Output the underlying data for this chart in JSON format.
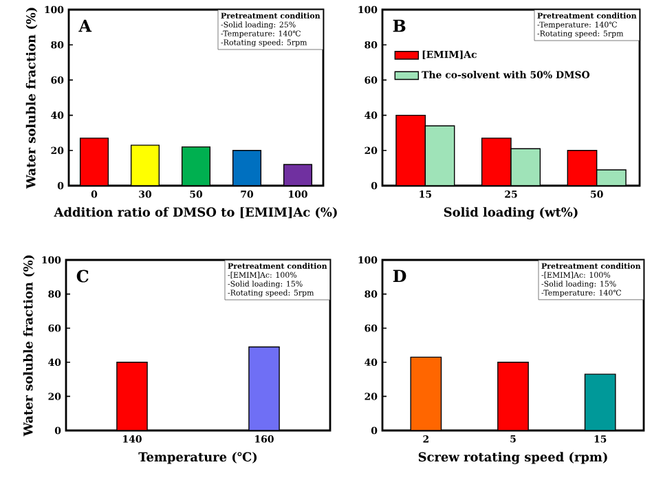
{
  "chart_data": [
    {
      "type": "bar",
      "title": "A",
      "xlabel": "Addition ratio of DMSO to [EMIM]Ac (%)",
      "ylabel": "Water soluble fraction (%)",
      "annotations": [
        "Pretreatment condition",
        "-Solid loading: 25%",
        "-Temperature: 140℃",
        "-Rotating speed: 5rpm"
      ],
      "categories": [
        "0",
        "30",
        "50",
        "70",
        "100"
      ],
      "values": [
        27,
        23,
        22,
        20,
        12
      ],
      "colors": [
        "#ff0000",
        "#ffff00",
        "#00b050",
        "#0070c0",
        "#7030a0"
      ],
      "ylim": [
        0,
        100
      ],
      "yticks": [
        0,
        20,
        40,
        60,
        80,
        100
      ]
    },
    {
      "type": "bar",
      "title": "B",
      "xlabel": "Solid loading (wt%)",
      "annotations": [
        "Pretreatment condition",
        "-Temperature: 140℃",
        "-Rotating speed: 5rpm"
      ],
      "categories": [
        "15",
        "25",
        "50"
      ],
      "series": [
        {
          "name": "[EMIM]Ac",
          "color": "#ff0000",
          "values": [
            40,
            27,
            20
          ]
        },
        {
          "name": "The co-solvent with 50% DMSO",
          "color": "#9fe3b8",
          "values": [
            34,
            21,
            9
          ]
        }
      ],
      "legend": "top left",
      "ylim": [
        0,
        100
      ],
      "yticks": [
        0,
        20,
        40,
        60,
        80,
        100
      ]
    },
    {
      "type": "bar",
      "title": "C",
      "xlabel": "Temperature (℃)",
      "ylabel": "Water soluble fraction (%)",
      "annotations": [
        "Pretreatment condition",
        "-[EMIM]Ac: 100%",
        "-Solid loading: 15%",
        "-Rotating speed: 5rpm"
      ],
      "categories": [
        "140",
        "160"
      ],
      "values": [
        40,
        49
      ],
      "colors": [
        "#ff0000",
        "#6f6ff5"
      ],
      "ylim": [
        0,
        100
      ],
      "yticks": [
        0,
        20,
        40,
        60,
        80,
        100
      ]
    },
    {
      "type": "bar",
      "title": "D",
      "xlabel": "Screw rotating speed (rpm)",
      "annotations": [
        "Pretreatment condition",
        "-[EMIM]Ac: 100%",
        "-Solid loading: 15%",
        "-Temperature: 140℃"
      ],
      "categories": [
        "2",
        "5",
        "15"
      ],
      "values": [
        43,
        40,
        33
      ],
      "colors": [
        "#ff6600",
        "#ff0000",
        "#009999"
      ],
      "ylim": [
        0,
        100
      ],
      "yticks": [
        0,
        20,
        40,
        60,
        80,
        100
      ]
    }
  ]
}
